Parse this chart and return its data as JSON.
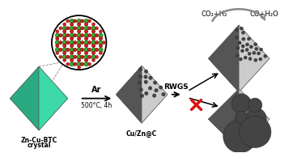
{
  "bg_color": "#ffffff",
  "teal_color": "#3dd9a8",
  "teal_dark": "#1a4a30",
  "light_gray": "#cccccc",
  "mid_gray": "#999999",
  "dark_gray": "#1a1a1a",
  "arrow_gray": "#777777",
  "red_color": "#dd1111",
  "mol_red": "#cc2222",
  "mol_green": "#33aa33",
  "mol_line": "#999999",
  "dot_color": "#444444",
  "dot_outline": "#222222",
  "texts": {
    "left_label1": "Zn-Cu-BTC",
    "left_label2": "crystal",
    "middle_label": "Cu/Zn@C",
    "ar": "Ar",
    "conditions": "500°C, 4h",
    "rwgs": "RWGS",
    "co2h2": "CO₂+H₂",
    "coh2o": "CO+H₂O"
  },
  "fig_w": 3.57,
  "fig_h": 1.89,
  "dpi": 100
}
